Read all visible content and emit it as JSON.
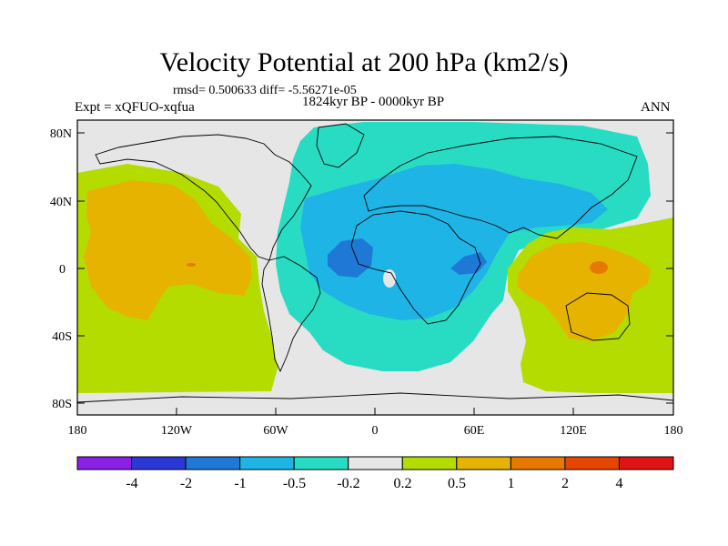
{
  "header": {
    "title": "Velocity Potential at 200 hPa (km2/s)",
    "stats": "rmsd= 0.500633 diff= -5.56271e-05",
    "experiment": "Expt = xQFUO-xqfua",
    "period": "1824kyr BP - 0000kyr BP",
    "season": "ANN"
  },
  "axes": {
    "lat_labels": [
      "80N",
      "40N",
      "0",
      "40S",
      "80S"
    ],
    "lon_labels": [
      "180",
      "120W",
      "60W",
      "0",
      "60E",
      "120E",
      "180"
    ]
  },
  "colorbar": {
    "labels": [
      "-4",
      "-2",
      "-1",
      "-0.5",
      "-0.2",
      "0.2",
      "0.5",
      "1",
      "2",
      "4"
    ],
    "colors": [
      "#8a1fe6",
      "#2b38d6",
      "#1e78d6",
      "#1eb4e6",
      "#28dcc4",
      "#e6e6e6",
      "#b4dc00",
      "#e6b400",
      "#e67a00",
      "#e64600",
      "#e01414"
    ]
  }
}
